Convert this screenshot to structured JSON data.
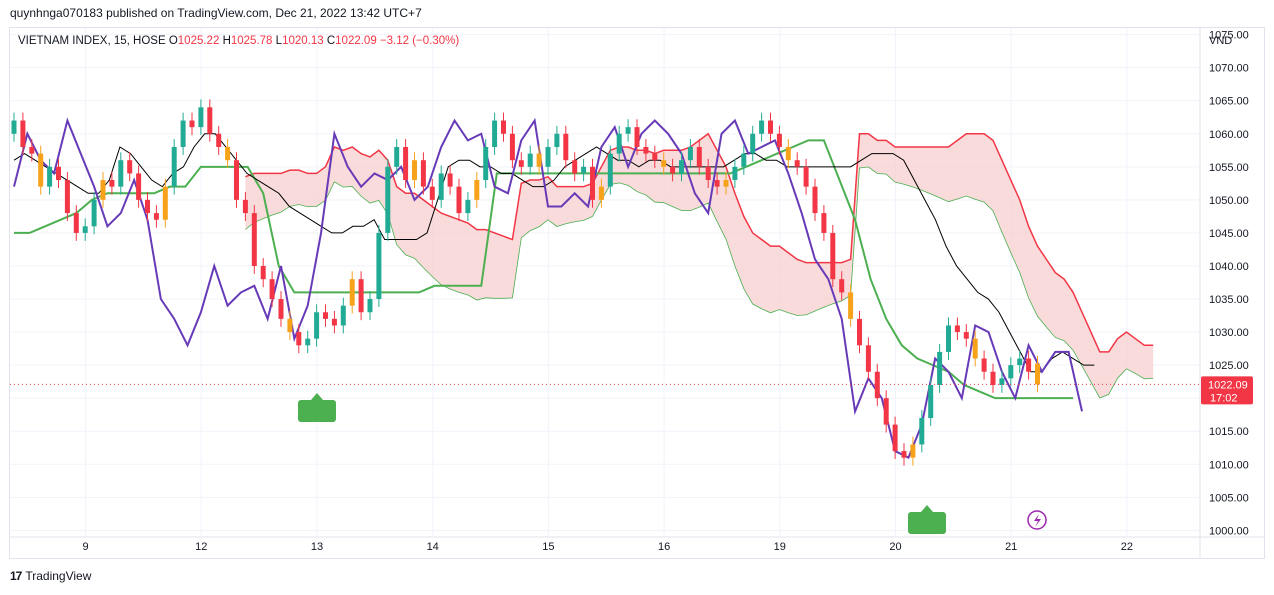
{
  "header": {
    "publish_line": "quynhnga070183 published on TradingView.com, Dec 21, 2022 13:42 UTC+7"
  },
  "legend": {
    "symbol": "VIETNAM INDEX, 15, HOSE",
    "open_label": "O",
    "open": "1025.22",
    "high_label": "H",
    "high": "1025.78",
    "low_label": "L",
    "low": "1020.13",
    "close_label": "C",
    "close": "1022.09",
    "change": "−3.12 (−0.30%)"
  },
  "footer": {
    "brand": "TradingView",
    "logo_text": "17"
  },
  "colors": {
    "up": "#22ab94",
    "down": "#f23645",
    "yellow": "#f7a21b",
    "conversion": "#000000",
    "base": "#4caf50",
    "spanA": "#f23645",
    "lagging": "#673ab7",
    "cloud_bear": "#f7cfcf",
    "cloud_bull": "#d9f0dc"
  },
  "chart_data": {
    "type": "candlestick",
    "title": "VIETNAM INDEX, 15, HOSE",
    "ylabel": "VND",
    "ylim": [
      999,
      1076
    ],
    "yticks": [
      "1000.00",
      "1005.00",
      "1010.00",
      "1015.00",
      "1020.00",
      "1025.00",
      "1030.00",
      "1035.00",
      "1040.00",
      "1045.00",
      "1050.00",
      "1055.00",
      "1060.00",
      "1065.00",
      "1070.00",
      "1075.00"
    ],
    "xticks": [
      {
        "label": "9",
        "i": 4
      },
      {
        "label": "12",
        "i": 17
      },
      {
        "label": "13",
        "i": 30
      },
      {
        "label": "14",
        "i": 43
      },
      {
        "label": "15",
        "i": 56
      },
      {
        "label": "16",
        "i": 69
      },
      {
        "label": "19",
        "i": 82
      },
      {
        "label": "20",
        "i": 95
      },
      {
        "label": "21",
        "i": 108
      },
      {
        "label": "22",
        "i": 121
      }
    ],
    "last_price": "1022.09",
    "countdown": "17:02",
    "closes": [
      1062,
      1058,
      1057,
      1052,
      1055,
      1053,
      1048,
      1045,
      1046,
      1050,
      1053,
      1052,
      1056,
      1054,
      1050,
      1048,
      1047,
      1052,
      1058,
      1062,
      1061,
      1064,
      1060,
      1058,
      1056,
      1050,
      1048,
      1040,
      1038,
      1035,
      1032,
      1030,
      1028,
      1029,
      1033,
      1032,
      1031,
      1034,
      1038,
      1033,
      1035,
      1045,
      1055,
      1058,
      1053,
      1056,
      1052,
      1050,
      1054,
      1052,
      1048,
      1050,
      1053,
      1058,
      1062,
      1060,
      1056,
      1055,
      1057,
      1055,
      1058,
      1060,
      1056,
      1054,
      1055,
      1050,
      1052,
      1057,
      1060,
      1061,
      1058,
      1057,
      1056,
      1055,
      1054,
      1056,
      1058,
      1055,
      1053,
      1052,
      1053,
      1055,
      1057,
      1060,
      1062,
      1060,
      1058,
      1056,
      1055,
      1052,
      1048,
      1045,
      1038,
      1036,
      1032,
      1028,
      1024,
      1020,
      1016,
      1012,
      1011,
      1013,
      1017,
      1022,
      1027,
      1031,
      1030,
      1029,
      1026,
      1024,
      1022,
      1023,
      1025,
      1026,
      1024,
      1022.09
    ],
    "opens": [
      1060,
      1062,
      1058,
      1057,
      1052,
      1055,
      1053,
      1048,
      1045,
      1046,
      1050,
      1053,
      1052,
      1056,
      1054,
      1050,
      1048,
      1047,
      1052,
      1058,
      1062,
      1061,
      1064,
      1060,
      1058,
      1056,
      1050,
      1048,
      1040,
      1038,
      1035,
      1032,
      1030,
      1028,
      1029,
      1033,
      1032,
      1031,
      1034,
      1038,
      1033,
      1035,
      1045,
      1055,
      1058,
      1053,
      1056,
      1052,
      1050,
      1054,
      1052,
      1048,
      1050,
      1053,
      1058,
      1062,
      1060,
      1056,
      1055,
      1057,
      1055,
      1058,
      1060,
      1056,
      1054,
      1055,
      1050,
      1052,
      1057,
      1060,
      1061,
      1058,
      1057,
      1056,
      1055,
      1054,
      1056,
      1058,
      1055,
      1053,
      1052,
      1053,
      1055,
      1057,
      1060,
      1062,
      1060,
      1058,
      1056,
      1055,
      1052,
      1048,
      1045,
      1038,
      1036,
      1032,
      1028,
      1024,
      1020,
      1016,
      1012,
      1011,
      1013,
      1017,
      1022,
      1027,
      1031,
      1030,
      1029,
      1026,
      1024,
      1022,
      1023,
      1025,
      1026,
      1025.22
    ],
    "conversion_line": [
      1056,
      1057,
      1056,
      1055,
      1054,
      1053,
      1052,
      1051,
      1051,
      1053,
      1058,
      1057,
      1055,
      1053,
      1052,
      1054,
      1055,
      1058,
      1060,
      1060,
      1058,
      1056,
      1054,
      1053,
      1052,
      1051,
      1049,
      1048,
      1047,
      1046,
      1045,
      1045,
      1046,
      1046,
      1047,
      1044,
      1044,
      1044,
      1044,
      1045,
      1050,
      1055,
      1056,
      1056,
      1055,
      1055,
      1054,
      1054,
      1053,
      1052,
      1052,
      1053,
      1055,
      1056,
      1057,
      1058,
      1057,
      1056,
      1056,
      1055,
      1056,
      1056,
      1055,
      1055,
      1055,
      1055,
      1055,
      1055,
      1056,
      1057,
      1057,
      1056,
      1056,
      1055,
      1055,
      1055,
      1055,
      1055,
      1055,
      1055,
      1056,
      1057,
      1057,
      1057,
      1056,
      1053,
      1050,
      1047,
      1043,
      1040,
      1038,
      1036,
      1035,
      1033,
      1030,
      1027,
      1024,
      1024,
      1026,
      1027,
      1026,
      1025,
      1025
    ],
    "base_line": [
      1045,
      1045,
      1046,
      1047,
      1048,
      1050,
      1051,
      1051,
      1051,
      1051,
      1052,
      1052,
      1055,
      1055,
      1055,
      1055,
      1051,
      1040,
      1036,
      1036,
      1036,
      1036,
      1036,
      1036,
      1036,
      1036,
      1036,
      1037,
      1037,
      1037,
      1037,
      1054,
      1054,
      1054,
      1054,
      1054,
      1054,
      1054,
      1054,
      1054,
      1054,
      1054,
      1054,
      1054,
      1054,
      1054,
      1054,
      1055,
      1056,
      1057,
      1058,
      1059,
      1059,
      1053,
      1047,
      1038,
      1032,
      1028,
      1026,
      1025,
      1024,
      1022,
      1021,
      1020,
      1020,
      1020,
      1020,
      1020,
      1020
    ],
    "lagging_span": [
      1052,
      1060,
      1056,
      1054,
      1062,
      1057,
      1052,
      1046,
      1048,
      1053,
      1047,
      1035,
      1032,
      1028,
      1033,
      1040,
      1034,
      1036,
      1037,
      1032,
      1040,
      1029,
      1034,
      1045,
      1060,
      1055,
      1052,
      1054,
      1053,
      1055,
      1050,
      1052,
      1058,
      1062,
      1059,
      1060,
      1052,
      1051,
      1059,
      1062,
      1049,
      1049,
      1051,
      1049,
      1058,
      1061,
      1055,
      1060,
      1062,
      1060,
      1057,
      1051,
      1048,
      1060,
      1062,
      1057,
      1058,
      1059,
      1054,
      1048,
      1041,
      1038,
      1032,
      1018,
      1023,
      1020,
      1012,
      1011,
      1016,
      1026,
      1024,
      1020,
      1031,
      1030,
      1024,
      1020,
      1028,
      1024,
      1027,
      1027,
      1018
    ]
  }
}
